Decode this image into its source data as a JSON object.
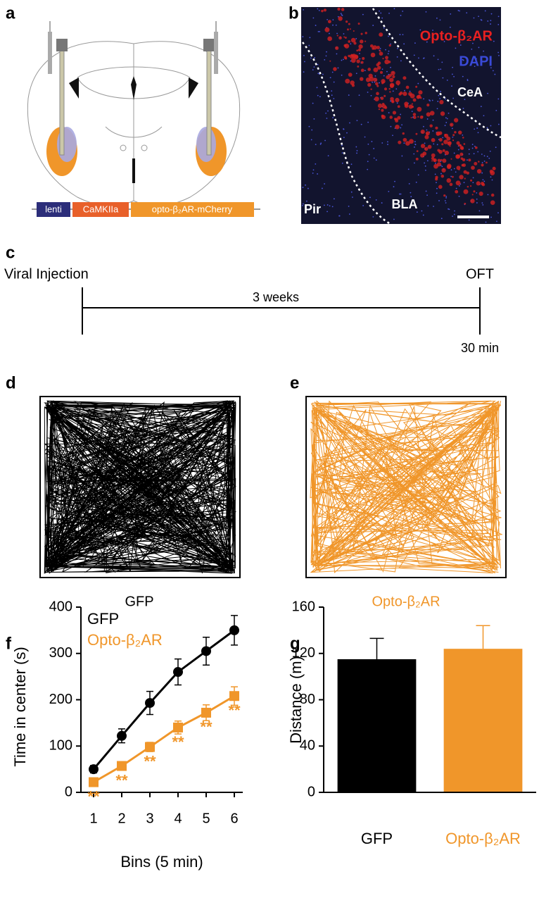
{
  "panel_labels": [
    "a",
    "b",
    "c",
    "d",
    "e",
    "f",
    "g"
  ],
  "panel_a": {
    "construct": [
      "lenti",
      "CaMKIIa",
      "opto-β₂AR-mCherry"
    ]
  },
  "panel_b": {
    "stain_labels": [
      "Opto-β₂AR",
      "DAPI"
    ],
    "region_labels": [
      "CeA",
      "Pir",
      "BLA"
    ]
  },
  "panel_c": {
    "start": "Viral Injection",
    "interval": "3 weeks",
    "end": "OFT",
    "duration": "30 min"
  },
  "panel_d": {
    "label": "GFP"
  },
  "panel_e": {
    "label": "Opto-β₂AR"
  },
  "chart_data": [
    {
      "type": "line",
      "x_label": "Bins (5 min)",
      "y_label": "Time in center (s)",
      "x": [
        1,
        2,
        3,
        4,
        5,
        6
      ],
      "xlim": [
        0.55,
        6.3
      ],
      "xticks": [
        1,
        2,
        3,
        4,
        5,
        6
      ],
      "ylim": [
        0,
        400
      ],
      "yticks": [
        0,
        100,
        200,
        300,
        400
      ],
      "legend": "upper left",
      "series": [
        {
          "name": "GFP",
          "color": "#000000",
          "marker": "circle",
          "values": [
            50,
            122,
            193,
            260,
            305,
            350
          ],
          "errors": [
            8,
            15,
            25,
            28,
            30,
            32
          ]
        },
        {
          "name": "Opto-β₂AR",
          "color": "#f0962a",
          "marker": "square",
          "values": [
            22,
            57,
            98,
            140,
            172,
            208
          ],
          "errors": [
            5,
            8,
            10,
            14,
            17,
            20
          ],
          "annotations": [
            "**",
            "**",
            "**",
            "**",
            "**",
            "**"
          ]
        }
      ]
    },
    {
      "type": "bar",
      "y_label": "Distance (m)",
      "categories": [
        "GFP",
        "Opto-β₂AR"
      ],
      "values": [
        115,
        124
      ],
      "errors": [
        18,
        20
      ],
      "colors": [
        "#000000",
        "#f0962a"
      ],
      "ylim": [
        0,
        160
      ],
      "yticks": [
        0,
        40,
        80,
        120,
        160
      ]
    }
  ]
}
